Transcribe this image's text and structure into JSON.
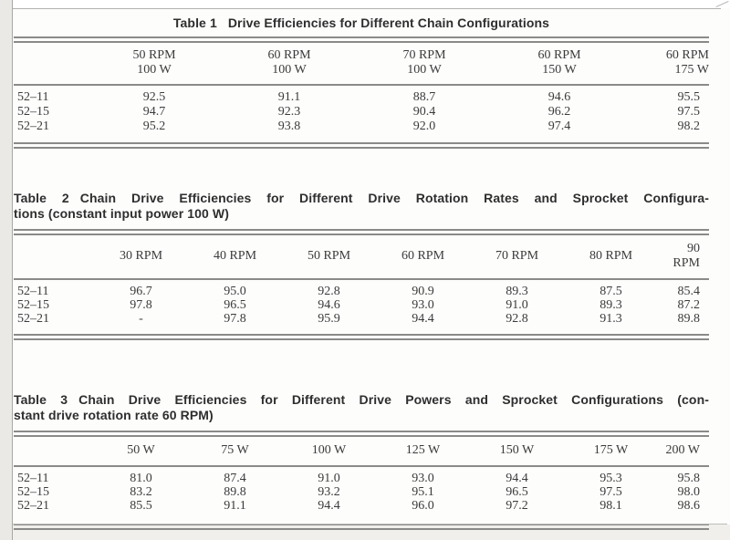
{
  "page": {
    "background": "#fdfdfc",
    "margin_color": "#eae9e6",
    "rule_color": "#8a8a88",
    "text_color": "#3b3b3b",
    "caption_color": "#2e2e2e"
  },
  "tables": [
    {
      "caption": {
        "label": "Table 1",
        "line1": "Drive Efficiencies for Different Chain Configurations",
        "line2": ""
      },
      "col_headers": [
        "50 RPM\n100 W",
        "60 RPM\n100 W",
        "70 RPM\n100 W",
        "60 RPM\n150 W",
        "60 RPM\n175 W"
      ],
      "rows": [
        {
          "label": "52–11",
          "values": [
            "92.5",
            "91.1",
            "88.7",
            "94.6",
            "95.5"
          ]
        },
        {
          "label": "52–15",
          "values": [
            "94.7",
            "92.3",
            "90.4",
            "96.2",
            "97.5"
          ]
        },
        {
          "label": "52–21",
          "values": [
            "95.2",
            "93.8",
            "92.0",
            "97.4",
            "98.2"
          ]
        }
      ]
    },
    {
      "caption": {
        "label": "Table 2",
        "line1": "Chain Drive Efficiencies for Different Drive Rotation Rates and Sprocket Configura-",
        "line2": "tions (constant input power 100 W)"
      },
      "col_headers": [
        "30 RPM",
        "40 RPM",
        "50 RPM",
        "60 RPM",
        "70 RPM",
        "80 RPM",
        "90 RPM"
      ],
      "rows": [
        {
          "label": "52–11",
          "values": [
            "96.7",
            "95.0",
            "92.8",
            "90.9",
            "89.3",
            "87.5",
            "85.4"
          ]
        },
        {
          "label": "52–15",
          "values": [
            "97.8",
            "96.5",
            "94.6",
            "93.0",
            "91.0",
            "89.3",
            "87.2"
          ]
        },
        {
          "label": "52–21",
          "values": [
            "-",
            "97.8",
            "95.9",
            "94.4",
            "92.8",
            "91.3",
            "89.8"
          ]
        }
      ]
    },
    {
      "caption": {
        "label": "Table 3",
        "line1": "Chain Drive Efficiencies for Different Drive Powers and Sprocket Configurations (con-",
        "line2": "stant drive rotation rate 60 RPM)"
      },
      "col_headers": [
        "50 W",
        "75 W",
        "100 W",
        "125 W",
        "150 W",
        "175 W",
        "200 W"
      ],
      "rows": [
        {
          "label": "52–11",
          "values": [
            "81.0",
            "87.4",
            "91.0",
            "93.0",
            "94.4",
            "95.3",
            "95.8"
          ]
        },
        {
          "label": "52–15",
          "values": [
            "83.2",
            "89.8",
            "93.2",
            "95.1",
            "96.5",
            "97.5",
            "98.0"
          ]
        },
        {
          "label": "52–21",
          "values": [
            "85.5",
            "91.1",
            "94.4",
            "96.0",
            "97.2",
            "98.1",
            "98.6"
          ]
        }
      ]
    }
  ]
}
